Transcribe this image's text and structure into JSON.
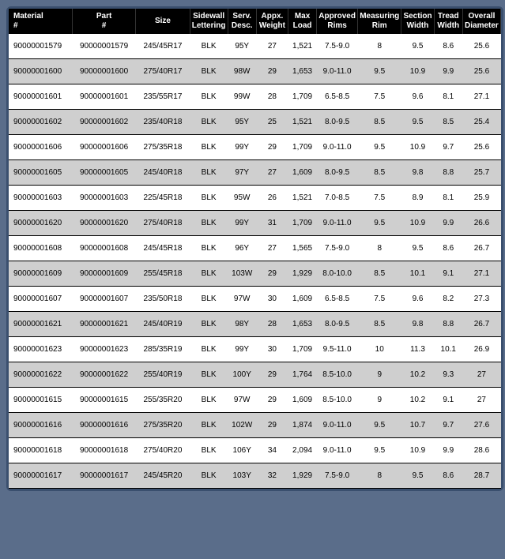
{
  "table": {
    "columns": [
      {
        "key": "material",
        "label": "Material #"
      },
      {
        "key": "part",
        "label": "Part #"
      },
      {
        "key": "size",
        "label": "Size"
      },
      {
        "key": "sidewall",
        "label": "Sidewall Lettering"
      },
      {
        "key": "serv",
        "label": "Serv. Desc."
      },
      {
        "key": "appx",
        "label": "Appx. Weight"
      },
      {
        "key": "max",
        "label": "Max Load"
      },
      {
        "key": "appr",
        "label": "Approved Rims"
      },
      {
        "key": "meas",
        "label": "Measuring Rim"
      },
      {
        "key": "sec",
        "label": "Section Width"
      },
      {
        "key": "tread",
        "label": "Tread Width"
      },
      {
        "key": "overall",
        "label": "Overall Diameter"
      }
    ],
    "rows": [
      {
        "material": "90000001579",
        "part": "90000001579",
        "size": "245/45R17",
        "sidewall": "BLK",
        "serv": "95Y",
        "appx": "27",
        "max": "1,521",
        "appr": "7.5-9.0",
        "meas": "8",
        "sec": "9.5",
        "tread": "8.6",
        "overall": "25.6"
      },
      {
        "material": "90000001600",
        "part": "90000001600",
        "size": "275/40R17",
        "sidewall": "BLK",
        "serv": "98W",
        "appx": "29",
        "max": "1,653",
        "appr": "9.0-11.0",
        "meas": "9.5",
        "sec": "10.9",
        "tread": "9.9",
        "overall": "25.6"
      },
      {
        "material": "90000001601",
        "part": "90000001601",
        "size": "235/55R17",
        "sidewall": "BLK",
        "serv": "99W",
        "appx": "28",
        "max": "1,709",
        "appr": "6.5-8.5",
        "meas": "7.5",
        "sec": "9.6",
        "tread": "8.1",
        "overall": "27.1"
      },
      {
        "material": "90000001602",
        "part": "90000001602",
        "size": "235/40R18",
        "sidewall": "BLK",
        "serv": "95Y",
        "appx": "25",
        "max": "1,521",
        "appr": "8.0-9.5",
        "meas": "8.5",
        "sec": "9.5",
        "tread": "8.5",
        "overall": "25.4"
      },
      {
        "material": "90000001606",
        "part": "90000001606",
        "size": "275/35R18",
        "sidewall": "BLK",
        "serv": "99Y",
        "appx": "29",
        "max": "1,709",
        "appr": "9.0-11.0",
        "meas": "9.5",
        "sec": "10.9",
        "tread": "9.7",
        "overall": "25.6"
      },
      {
        "material": "90000001605",
        "part": "90000001605",
        "size": "245/40R18",
        "sidewall": "BLK",
        "serv": "97Y",
        "appx": "27",
        "max": "1,609",
        "appr": "8.0-9.5",
        "meas": "8.5",
        "sec": "9.8",
        "tread": "8.8",
        "overall": "25.7"
      },
      {
        "material": "90000001603",
        "part": "90000001603",
        "size": "225/45R18",
        "sidewall": "BLK",
        "serv": "95W",
        "appx": "26",
        "max": "1,521",
        "appr": "7.0-8.5",
        "meas": "7.5",
        "sec": "8.9",
        "tread": "8.1",
        "overall": "25.9"
      },
      {
        "material": "90000001620",
        "part": "90000001620",
        "size": "275/40R18",
        "sidewall": "BLK",
        "serv": "99Y",
        "appx": "31",
        "max": "1,709",
        "appr": "9.0-11.0",
        "meas": "9.5",
        "sec": "10.9",
        "tread": "9.9",
        "overall": "26.6"
      },
      {
        "material": "90000001608",
        "part": "90000001608",
        "size": "245/45R18",
        "sidewall": "BLK",
        "serv": "96Y",
        "appx": "27",
        "max": "1,565",
        "appr": "7.5-9.0",
        "meas": "8",
        "sec": "9.5",
        "tread": "8.6",
        "overall": "26.7"
      },
      {
        "material": "90000001609",
        "part": "90000001609",
        "size": "255/45R18",
        "sidewall": "BLK",
        "serv": "103W",
        "appx": "29",
        "max": "1,929",
        "appr": "8.0-10.0",
        "meas": "8.5",
        "sec": "10.1",
        "tread": "9.1",
        "overall": "27.1"
      },
      {
        "material": "90000001607",
        "part": "90000001607",
        "size": "235/50R18",
        "sidewall": "BLK",
        "serv": "97W",
        "appx": "30",
        "max": "1,609",
        "appr": "6.5-8.5",
        "meas": "7.5",
        "sec": "9.6",
        "tread": "8.2",
        "overall": "27.3"
      },
      {
        "material": "90000001621",
        "part": "90000001621",
        "size": "245/40R19",
        "sidewall": "BLK",
        "serv": "98Y",
        "appx": "28",
        "max": "1,653",
        "appr": "8.0-9.5",
        "meas": "8.5",
        "sec": "9.8",
        "tread": "8.8",
        "overall": "26.7"
      },
      {
        "material": "90000001623",
        "part": "90000001623",
        "size": "285/35R19",
        "sidewall": "BLK",
        "serv": "99Y",
        "appx": "30",
        "max": "1,709",
        "appr": "9.5-11.0",
        "meas": "10",
        "sec": "11.3",
        "tread": "10.1",
        "overall": "26.9"
      },
      {
        "material": "90000001622",
        "part": "90000001622",
        "size": "255/40R19",
        "sidewall": "BLK",
        "serv": "100Y",
        "appx": "29",
        "max": "1,764",
        "appr": "8.5-10.0",
        "meas": "9",
        "sec": "10.2",
        "tread": "9.3",
        "overall": "27"
      },
      {
        "material": "90000001615",
        "part": "90000001615",
        "size": "255/35R20",
        "sidewall": "BLK",
        "serv": "97W",
        "appx": "29",
        "max": "1,609",
        "appr": "8.5-10.0",
        "meas": "9",
        "sec": "10.2",
        "tread": "9.1",
        "overall": "27"
      },
      {
        "material": "90000001616",
        "part": "90000001616",
        "size": "275/35R20",
        "sidewall": "BLK",
        "serv": "102W",
        "appx": "29",
        "max": "1,874",
        "appr": "9.0-11.0",
        "meas": "9.5",
        "sec": "10.7",
        "tread": "9.7",
        "overall": "27.6"
      },
      {
        "material": "90000001618",
        "part": "90000001618",
        "size": "275/40R20",
        "sidewall": "BLK",
        "serv": "106Y",
        "appx": "34",
        "max": "2,094",
        "appr": "9.0-11.0",
        "meas": "9.5",
        "sec": "10.9",
        "tread": "9.9",
        "overall": "28.6"
      },
      {
        "material": "90000001617",
        "part": "90000001617",
        "size": "245/45R20",
        "sidewall": "BLK",
        "serv": "103Y",
        "appx": "32",
        "max": "1,929",
        "appr": "7.5-9.0",
        "meas": "8",
        "sec": "9.5",
        "tread": "8.6",
        "overall": "28.7"
      }
    ],
    "row_colors": {
      "odd": "#ffffff",
      "even": "#cfcfcf"
    },
    "header_bg": "#000000",
    "header_fg": "#ffffff",
    "border_color": "#3a4f6e"
  }
}
